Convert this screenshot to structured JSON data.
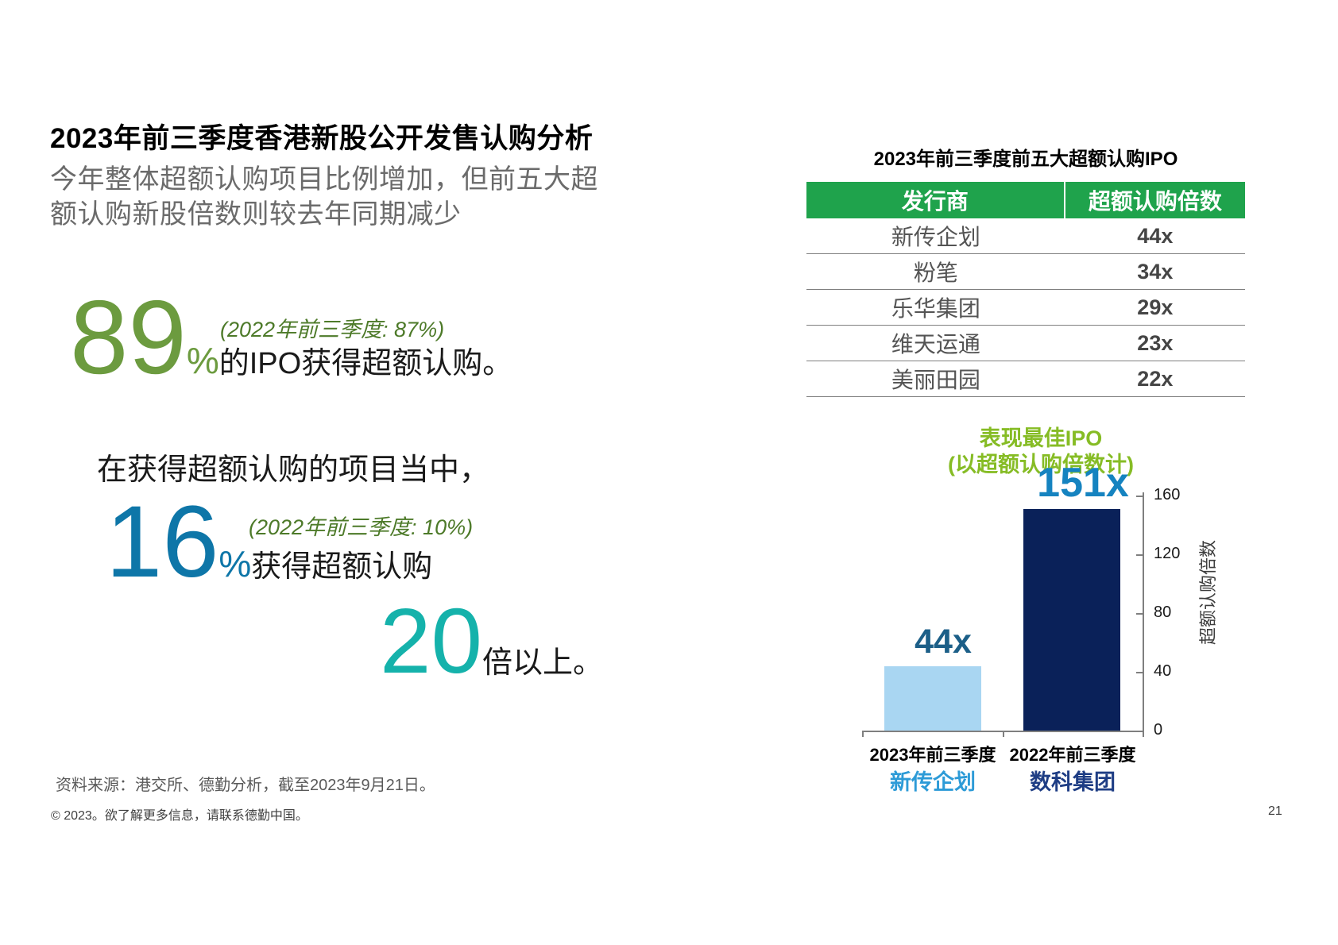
{
  "header": {
    "title": "2023年前三季度香港新股公开发售认购分析",
    "subtitle_line1": "今年整体超额认购项目比例增加，但前五大超",
    "subtitle_line2": "额认购新股倍数则较去年同期减少"
  },
  "stats": {
    "stat1": {
      "value": "89",
      "percent": "%",
      "annotation": "(2022年前三季度: 87%)",
      "text": "的IPO获得超额认购。"
    },
    "intro2": "在获得超额认购的项目当中，",
    "stat2": {
      "value": "16",
      "percent": "%",
      "annotation": "(2022年前三季度: 10%)",
      "text": "获得超额认购"
    },
    "stat3": {
      "value": "20",
      "text": "倍以上。"
    }
  },
  "table": {
    "title": "2023年前三季度前五大超额认购IPO",
    "columns": [
      "发行商",
      "超额认购倍数"
    ],
    "rows": [
      [
        "新传企划",
        "44x"
      ],
      [
        "粉笔",
        "34x"
      ],
      [
        "乐华集团",
        "29x"
      ],
      [
        "维天运通",
        "23x"
      ],
      [
        "美丽田园",
        "22x"
      ]
    ]
  },
  "chart": {
    "title_line1": "表现最佳IPO",
    "title_line2": "(以超额认购倍数计)",
    "ymax": 160,
    "y_ticks": [
      "160",
      "120",
      "80",
      "40",
      "0"
    ],
    "y_axis_label": "超额认购倍数",
    "bars": [
      {
        "period": "2023年前三季度",
        "company": "新传企划",
        "label": "44x",
        "value": 44
      },
      {
        "period": "2022年前三季度",
        "company": "数科集团",
        "label": "151x",
        "value": 151
      }
    ]
  },
  "chart_data": [
    {
      "type": "table",
      "title": "2023年前三季度前五大超额认购IPO",
      "columns": [
        "发行商",
        "超额认购倍数"
      ],
      "rows": [
        [
          "新传企划",
          "44x"
        ],
        [
          "粉笔",
          "34x"
        ],
        [
          "乐华集团",
          "29x"
        ],
        [
          "维天运通",
          "23x"
        ],
        [
          "美丽田园",
          "22x"
        ]
      ]
    },
    {
      "type": "bar",
      "title": "表现最佳IPO (以超额认购倍数计)",
      "categories": [
        "2023年前三季度 新传企划",
        "2022年前三季度 数科集团"
      ],
      "values": [
        44,
        151
      ],
      "data_labels": [
        "44x",
        "151x"
      ],
      "xlabel": "",
      "ylabel": "超额认购倍数",
      "ylim": [
        0,
        160
      ],
      "yticks": [
        0,
        40,
        80,
        120,
        160
      ],
      "grid": false,
      "legend_position": "none",
      "bar_colors": [
        "#a9d6f2",
        "#0a2159"
      ]
    }
  ],
  "key_figures": {
    "oversubscribed_ipo_pct_2023": "89%",
    "oversubscribed_ipo_pct_2022": "87%",
    "over_20x_pct_2023": "16%",
    "over_20x_pct_2022": "10%"
  },
  "colors": {
    "stat_green": "#6c9b3f",
    "annotation_green": "#4d7a29",
    "stat_blue": "#0e76a8",
    "stat_teal": "#15b2ab",
    "table_header_green": "#1fa34c",
    "chart_title_green": "#86bc25",
    "bar_light_blue": "#a9d6f2",
    "bar_dark_navy": "#0a2159",
    "label_44x_blue": "#1c5f88",
    "label_151x_blue": "#1583c0",
    "company_2023_blue": "#2d9bd7",
    "company_2022_navy": "#1e3d84",
    "subtitle_gray": "#6b6b6b"
  },
  "footer": {
    "source": "资料来源：港交所、德勤分析，截至2023年9月21日。",
    "copyright": "© 2023。欲了解更多信息，请联系德勤中国。",
    "page_number": "21"
  }
}
